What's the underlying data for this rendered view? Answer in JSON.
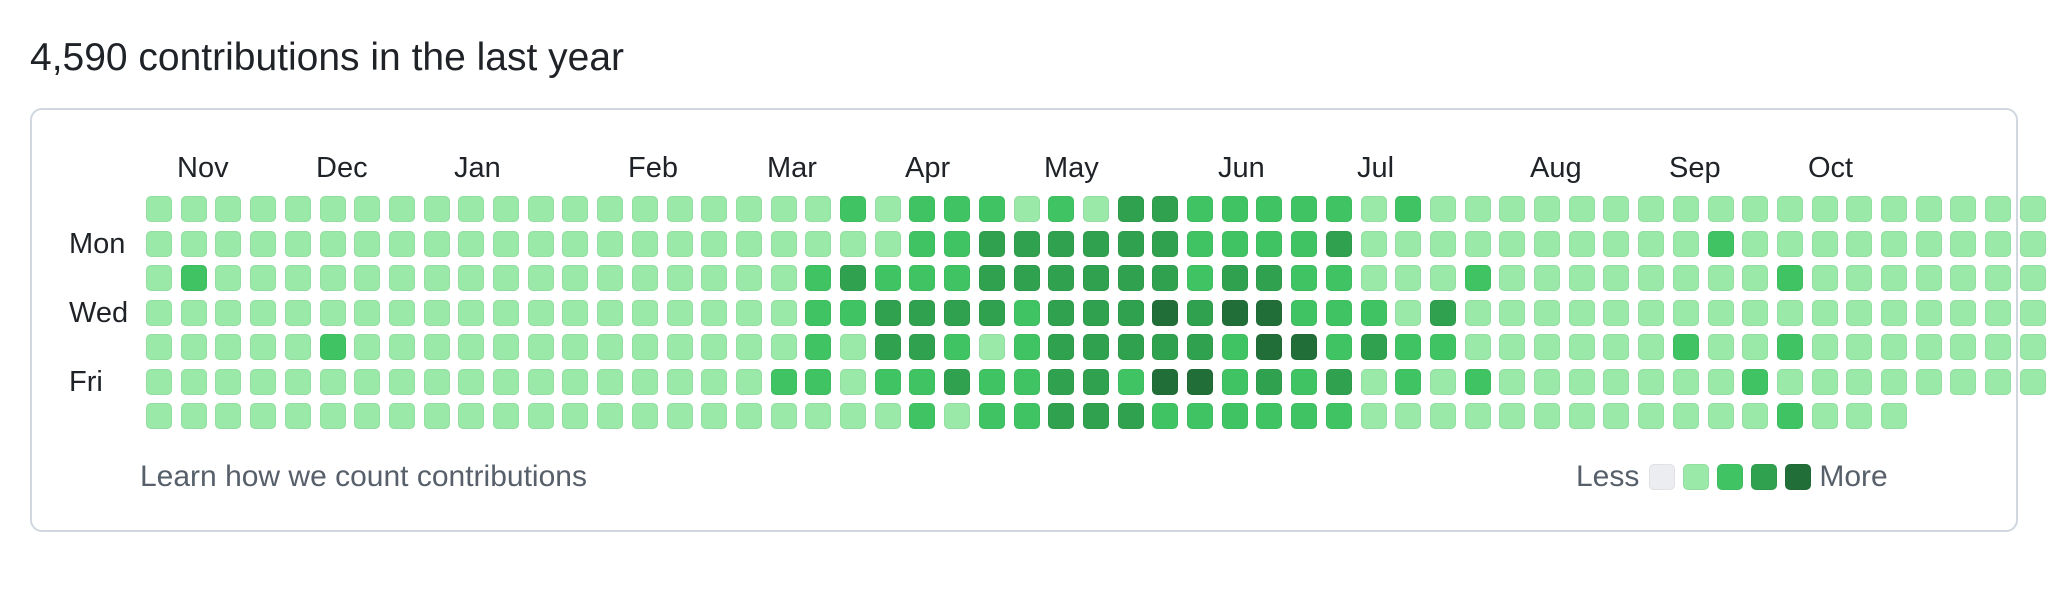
{
  "header": {
    "title": "4,590 contributions in the last year"
  },
  "colors": {
    "level_0": "#ebedf0",
    "level_1": "#9be9a8",
    "level_2": "#40c463",
    "level_3": "#30a14e",
    "level_4": "#216e39"
  },
  "graph": {
    "months": [
      {
        "label": "Nov",
        "week": 1
      },
      {
        "label": "Dec",
        "week": 5
      },
      {
        "label": "Jan",
        "week": 9
      },
      {
        "label": "Feb",
        "week": 14
      },
      {
        "label": "Mar",
        "week": 18
      },
      {
        "label": "Apr",
        "week": 22
      },
      {
        "label": "May",
        "week": 26
      },
      {
        "label": "Jun",
        "week": 31
      },
      {
        "label": "Jul",
        "week": 35
      },
      {
        "label": "Aug",
        "week": 40
      },
      {
        "label": "Sep",
        "week": 44
      },
      {
        "label": "Oct",
        "week": 48
      }
    ],
    "day_labels": [
      {
        "label": "Mon",
        "row": 1
      },
      {
        "label": "Wed",
        "row": 3
      },
      {
        "label": "Fri",
        "row": 5
      }
    ],
    "levels": [
      "1111111111111111111121222121332222212111111111111111111",
      "1111111111111111111111223333332222311111111112111111111",
      "1211111111111111111232223333332332211121111111121111111",
      "1111111111111111111223333233343442221311111111111111111",
      "1111121111111111111213321233333244232211111121121111111",
      "1111111111111111112212232233244232312121111111211111111",
      "111111111111111111111121223332222221111111111112111"
    ]
  },
  "footer": {
    "learn_link": "Learn how we count contributions",
    "legend_less": "Less",
    "legend_more": "More"
  }
}
